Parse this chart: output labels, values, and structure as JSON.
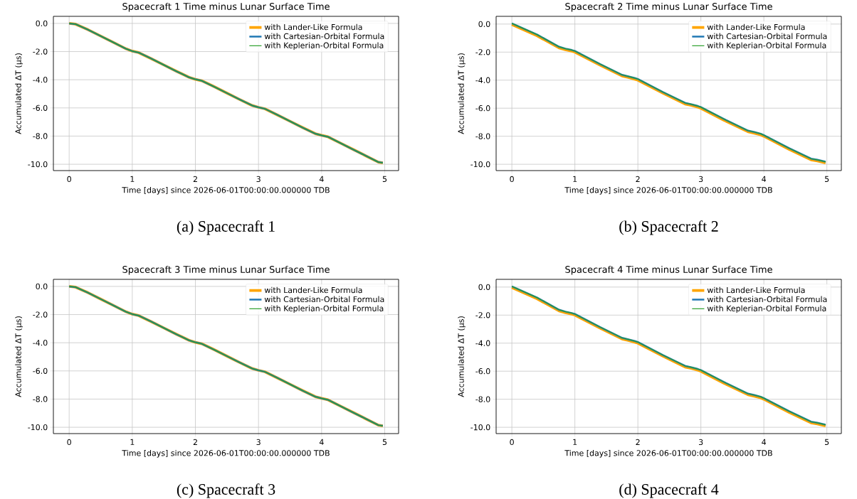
{
  "chart_data": [
    {
      "type": "line",
      "title": "Spacecraft 1 Time minus Lunar Surface Time",
      "xlabel": "Time [days] since 2026-06-01T00:00:00.000000 TDB",
      "ylabel": "Accumulated ΔT (µs)",
      "annotations": [
        "(a) Spacecraft 1"
      ],
      "x": [
        0,
        0.1,
        0.3,
        0.5,
        0.7,
        0.9,
        1.0,
        1.1,
        1.3,
        1.5,
        1.7,
        1.9,
        2.0,
        2.1,
        2.3,
        2.5,
        2.7,
        2.9,
        3.0,
        3.1,
        3.3,
        3.5,
        3.7,
        3.9,
        4.0,
        4.1,
        4.3,
        4.5,
        4.7,
        4.9,
        4.97
      ],
      "series": [
        {
          "name": "with Lander-Like Formula",
          "color": "#ffa500",
          "values": [
            0,
            -0.05,
            -0.45,
            -0.9,
            -1.35,
            -1.8,
            -1.97,
            -2.07,
            -2.5,
            -2.95,
            -3.4,
            -3.83,
            -3.97,
            -4.07,
            -4.5,
            -4.95,
            -5.4,
            -5.83,
            -5.96,
            -6.06,
            -6.5,
            -6.95,
            -7.4,
            -7.83,
            -7.95,
            -8.05,
            -8.5,
            -8.95,
            -9.4,
            -9.85,
            -9.9
          ]
        },
        {
          "name": "with Cartesian-Orbital Formula",
          "color": "#1f77b4",
          "values": [
            0,
            -0.05,
            -0.45,
            -0.9,
            -1.35,
            -1.8,
            -1.97,
            -2.07,
            -2.5,
            -2.95,
            -3.4,
            -3.83,
            -3.97,
            -4.07,
            -4.5,
            -4.95,
            -5.4,
            -5.83,
            -5.96,
            -6.06,
            -6.5,
            -6.95,
            -7.4,
            -7.83,
            -7.95,
            -8.05,
            -8.5,
            -8.95,
            -9.4,
            -9.85,
            -9.9
          ]
        },
        {
          "name": "with Keplerian-Orbital Formula",
          "color": "#2ca02c",
          "values": [
            0,
            -0.05,
            -0.45,
            -0.9,
            -1.35,
            -1.8,
            -1.97,
            -2.07,
            -2.5,
            -2.95,
            -3.4,
            -3.83,
            -3.97,
            -4.07,
            -4.5,
            -4.95,
            -5.4,
            -5.83,
            -5.96,
            -6.06,
            -6.5,
            -6.95,
            -7.4,
            -7.83,
            -7.95,
            -8.05,
            -8.5,
            -8.95,
            -9.4,
            -9.85,
            -9.9
          ]
        }
      ],
      "xlim": [
        -0.25,
        5.22
      ],
      "ylim": [
        -10.45,
        0.5
      ],
      "xticks": [
        0,
        1,
        2,
        3,
        4,
        5
      ],
      "yticks": [
        {
          "value": 0,
          "label": "0.0"
        },
        {
          "value": -2,
          "label": "-2.0"
        },
        {
          "value": -4,
          "label": "-4.0"
        },
        {
          "value": -6,
          "label": "-6.0"
        },
        {
          "value": -8,
          "label": "-8.0"
        },
        {
          "value": -10,
          "label": "-10.0"
        }
      ],
      "grid": true,
      "legend": "top right"
    },
    {
      "type": "line",
      "title": "Spacecraft 2 Time minus Lunar Surface Time",
      "xlabel": "Time [days] since 2026-06-01T00:00:00.000000 TDB",
      "ylabel": "Accumulated ΔT (µs)",
      "annotations": [
        "(b) Spacecraft 2"
      ],
      "x": [
        0,
        0.4,
        0.75,
        0.85,
        0.95,
        1.0,
        1.4,
        1.75,
        1.85,
        1.95,
        2.0,
        2.4,
        2.75,
        2.85,
        2.95,
        3.0,
        3.4,
        3.75,
        3.85,
        3.95,
        4.0,
        4.4,
        4.75,
        4.85,
        4.98
      ],
      "series": [
        {
          "name": "with Lander-Like Formula",
          "color": "#ffa500",
          "values": [
            -0.03,
            -0.83,
            -1.7,
            -1.83,
            -1.93,
            -2.0,
            -2.93,
            -3.7,
            -3.81,
            -3.93,
            -4.0,
            -4.93,
            -5.7,
            -5.8,
            -5.92,
            -6.0,
            -6.93,
            -7.68,
            -7.78,
            -7.9,
            -8.0,
            -8.93,
            -9.68,
            -9.76,
            -9.9
          ]
        },
        {
          "name": "with Cartesian-Orbital Formula",
          "color": "#1f77b4",
          "values": [
            0.05,
            -0.75,
            -1.62,
            -1.75,
            -1.85,
            -1.92,
            -2.85,
            -3.62,
            -3.73,
            -3.85,
            -3.92,
            -4.85,
            -5.62,
            -5.72,
            -5.84,
            -5.92,
            -6.85,
            -7.6,
            -7.7,
            -7.82,
            -7.92,
            -8.85,
            -9.6,
            -9.68,
            -9.82
          ]
        },
        {
          "name": "with Keplerian-Orbital Formula",
          "color": "#2ca02c",
          "values": [
            0.05,
            -0.75,
            -1.62,
            -1.75,
            -1.85,
            -1.92,
            -2.85,
            -3.62,
            -3.73,
            -3.85,
            -3.92,
            -4.85,
            -5.62,
            -5.72,
            -5.84,
            -5.92,
            -6.85,
            -7.6,
            -7.7,
            -7.82,
            -7.92,
            -8.85,
            -9.6,
            -9.68,
            -9.82
          ]
        }
      ],
      "xlim": [
        -0.25,
        5.23
      ],
      "ylim": [
        -10.45,
        0.55
      ],
      "xticks": [
        0,
        1,
        2,
        3,
        4,
        5
      ],
      "yticks": [
        {
          "value": 0,
          "label": "0.0"
        },
        {
          "value": -2,
          "label": "-2.0"
        },
        {
          "value": -4,
          "label": "-4.0"
        },
        {
          "value": -6,
          "label": "-6.0"
        },
        {
          "value": -8,
          "label": "-8.0"
        },
        {
          "value": -10,
          "label": "-10.0"
        }
      ],
      "grid": true,
      "legend": "top right"
    },
    {
      "type": "line",
      "title": "Spacecraft 3 Time minus Lunar Surface Time",
      "xlabel": "Time [days] since 2026-06-01T00:00:00.000000 TDB",
      "ylabel": "Accumulated ΔT (µs)",
      "annotations": [
        "(c) Spacecraft 3"
      ],
      "x": [
        0,
        0.1,
        0.3,
        0.5,
        0.7,
        0.9,
        1.0,
        1.1,
        1.3,
        1.5,
        1.7,
        1.9,
        2.0,
        2.1,
        2.3,
        2.5,
        2.7,
        2.9,
        3.0,
        3.1,
        3.3,
        3.5,
        3.7,
        3.9,
        4.0,
        4.1,
        4.3,
        4.5,
        4.7,
        4.9,
        4.97
      ],
      "series": [
        {
          "name": "with Lander-Like Formula",
          "color": "#ffa500",
          "values": [
            0,
            -0.05,
            -0.45,
            -0.9,
            -1.35,
            -1.8,
            -1.97,
            -2.07,
            -2.5,
            -2.95,
            -3.4,
            -3.83,
            -3.97,
            -4.07,
            -4.5,
            -4.95,
            -5.4,
            -5.83,
            -5.96,
            -6.06,
            -6.5,
            -6.95,
            -7.4,
            -7.83,
            -7.95,
            -8.05,
            -8.5,
            -8.95,
            -9.4,
            -9.85,
            -9.9
          ]
        },
        {
          "name": "with Cartesian-Orbital Formula",
          "color": "#1f77b4",
          "values": [
            0,
            -0.05,
            -0.45,
            -0.9,
            -1.35,
            -1.8,
            -1.97,
            -2.07,
            -2.5,
            -2.95,
            -3.4,
            -3.83,
            -3.97,
            -4.07,
            -4.5,
            -4.95,
            -5.4,
            -5.83,
            -5.96,
            -6.06,
            -6.5,
            -6.95,
            -7.4,
            -7.83,
            -7.95,
            -8.05,
            -8.5,
            -8.95,
            -9.4,
            -9.85,
            -9.9
          ]
        },
        {
          "name": "with Keplerian-Orbital Formula",
          "color": "#2ca02c",
          "values": [
            0,
            -0.05,
            -0.45,
            -0.9,
            -1.35,
            -1.8,
            -1.97,
            -2.07,
            -2.5,
            -2.95,
            -3.4,
            -3.83,
            -3.97,
            -4.07,
            -4.5,
            -4.95,
            -5.4,
            -5.83,
            -5.96,
            -6.06,
            -6.5,
            -6.95,
            -7.4,
            -7.83,
            -7.95,
            -8.05,
            -8.5,
            -8.95,
            -9.4,
            -9.85,
            -9.9
          ]
        }
      ],
      "xlim": [
        -0.25,
        5.22
      ],
      "ylim": [
        -10.45,
        0.5
      ],
      "xticks": [
        0,
        1,
        2,
        3,
        4,
        5
      ],
      "yticks": [
        {
          "value": 0,
          "label": "0.0"
        },
        {
          "value": -2,
          "label": "-2.0"
        },
        {
          "value": -4,
          "label": "-4.0"
        },
        {
          "value": -6,
          "label": "-6.0"
        },
        {
          "value": -8,
          "label": "-8.0"
        },
        {
          "value": -10,
          "label": "-10.0"
        }
      ],
      "grid": true,
      "legend": "top right"
    },
    {
      "type": "line",
      "title": "Spacecraft 4 Time minus Lunar Surface Time",
      "xlabel": "Time [days] since 2026-06-01T00:00:00.000000 TDB",
      "ylabel": "Accumulated ΔT (µs)",
      "annotations": [
        "(d) Spacecraft 4"
      ],
      "x": [
        0,
        0.4,
        0.75,
        0.85,
        0.95,
        1.0,
        1.4,
        1.75,
        1.85,
        1.95,
        2.0,
        2.4,
        2.75,
        2.85,
        2.95,
        3.0,
        3.4,
        3.75,
        3.85,
        3.95,
        4.0,
        4.4,
        4.75,
        4.85,
        4.98
      ],
      "series": [
        {
          "name": "with Lander-Like Formula",
          "color": "#ffa500",
          "values": [
            -0.03,
            -0.83,
            -1.7,
            -1.83,
            -1.93,
            -2.0,
            -2.93,
            -3.7,
            -3.81,
            -3.93,
            -4.0,
            -4.93,
            -5.7,
            -5.8,
            -5.92,
            -6.0,
            -6.93,
            -7.68,
            -7.78,
            -7.9,
            -8.0,
            -8.93,
            -9.68,
            -9.76,
            -9.9
          ]
        },
        {
          "name": "with Cartesian-Orbital Formula",
          "color": "#1f77b4",
          "values": [
            0.05,
            -0.75,
            -1.62,
            -1.75,
            -1.85,
            -1.92,
            -2.85,
            -3.62,
            -3.73,
            -3.85,
            -3.92,
            -4.85,
            -5.62,
            -5.72,
            -5.84,
            -5.92,
            -6.85,
            -7.6,
            -7.7,
            -7.82,
            -7.92,
            -8.85,
            -9.6,
            -9.68,
            -9.82
          ]
        },
        {
          "name": "with Keplerian-Orbital Formula",
          "color": "#2ca02c",
          "values": [
            0.05,
            -0.75,
            -1.62,
            -1.75,
            -1.85,
            -1.92,
            -2.85,
            -3.62,
            -3.73,
            -3.85,
            -3.92,
            -4.85,
            -5.62,
            -5.72,
            -5.84,
            -5.92,
            -6.85,
            -7.6,
            -7.7,
            -7.82,
            -7.92,
            -8.85,
            -9.6,
            -9.68,
            -9.82
          ]
        }
      ],
      "xlim": [
        -0.25,
        5.23
      ],
      "ylim": [
        -10.45,
        0.55
      ],
      "xticks": [
        0,
        1,
        2,
        3,
        4,
        5
      ],
      "yticks": [
        {
          "value": 0,
          "label": "0.0"
        },
        {
          "value": -2,
          "label": "-2.0"
        },
        {
          "value": -4,
          "label": "-4.0"
        },
        {
          "value": -6,
          "label": "-6.0"
        },
        {
          "value": -8,
          "label": "-8.0"
        },
        {
          "value": -10,
          "label": "-10.0"
        }
      ],
      "grid": true,
      "legend": "top right"
    }
  ]
}
